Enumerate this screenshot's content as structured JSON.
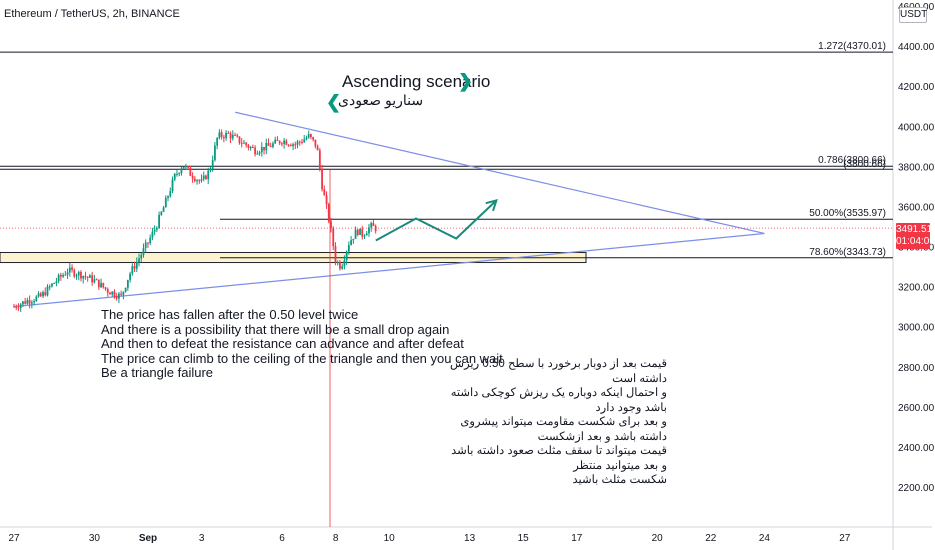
{
  "header": {
    "symbol": "Ethereum / TetherUS, 2h, BINANCE",
    "currency": "USDT",
    "last_price": "3491.51",
    "countdown": "01:04:09"
  },
  "chart_data": {
    "type": "candlestick",
    "title": "Ethereum / TetherUS, 2h, BINANCE",
    "ylim": [
      2080,
      4600
    ],
    "y_ticks": [
      4600,
      4400,
      4200,
      4000,
      3800,
      3600,
      3400,
      3200,
      3000,
      2800,
      2600,
      2400,
      2200
    ],
    "y_tick_labels": [
      "4600.00",
      "4400.00",
      "4200.00",
      "4000.00",
      "3800.00",
      "3600.00",
      "3400.00",
      "3200.00",
      "3000.00",
      "2800.00",
      "2600.00",
      "2400.00",
      "2200.00"
    ],
    "x_ticks": [
      {
        "label": "27",
        "day_index": 0
      },
      {
        "label": "30",
        "day_index": 3
      },
      {
        "label": "Sep",
        "day_index": 5
      },
      {
        "label": "3",
        "day_index": 7
      },
      {
        "label": "6",
        "day_index": 10
      },
      {
        "label": "8",
        "day_index": 12
      },
      {
        "label": "10",
        "day_index": 14
      },
      {
        "label": "13",
        "day_index": 17
      },
      {
        "label": "15",
        "day_index": 19
      },
      {
        "label": "17",
        "day_index": 21
      },
      {
        "label": "20",
        "day_index": 24
      },
      {
        "label": "22",
        "day_index": 26
      },
      {
        "label": "24",
        "day_index": 28
      },
      {
        "label": "27",
        "day_index": 31
      }
    ],
    "close_path": [
      [
        0,
        3100
      ],
      [
        0.5,
        3130
      ],
      [
        1,
        3150
      ],
      [
        1.5,
        3220
      ],
      [
        2,
        3280
      ],
      [
        2.5,
        3260
      ],
      [
        3,
        3230
      ],
      [
        3.5,
        3180
      ],
      [
        4,
        3150
      ],
      [
        4.3,
        3260
      ],
      [
        4.7,
        3350
      ],
      [
        5,
        3420
      ],
      [
        5.3,
        3500
      ],
      [
        5.6,
        3600
      ],
      [
        6,
        3750
      ],
      [
        6.3,
        3810
      ],
      [
        6.6,
        3760
      ],
      [
        7,
        3720
      ],
      [
        7.3,
        3780
      ],
      [
        7.6,
        3950
      ],
      [
        8,
        3960
      ],
      [
        8.5,
        3920
      ],
      [
        9,
        3880
      ],
      [
        9.5,
        3900
      ],
      [
        10,
        3930
      ],
      [
        10.5,
        3910
      ],
      [
        11,
        3950
      ],
      [
        11.3,
        3900
      ],
      [
        11.5,
        3700
      ],
      [
        11.8,
        3500
      ],
      [
        12,
        3330
      ],
      [
        12.2,
        3300
      ],
      [
        12.5,
        3420
      ],
      [
        12.8,
        3480
      ],
      [
        13,
        3460
      ],
      [
        13.3,
        3500
      ],
      [
        13.5,
        3491.51
      ]
    ],
    "horizontal_levels": [
      {
        "label": "1.272(4370.01)",
        "value": 4370.01
      },
      {
        "label": "0.786(3800.66)",
        "value": 3800.66
      },
      {
        "label": "50.00%(3535.97)",
        "value": 3535.97
      },
      {
        "label": "78.60%(3343.73)",
        "value": 3343.73
      }
    ],
    "support_zone": [
      3320,
      3370
    ],
    "triangle": {
      "upper_start": [
        9,
        4040
      ],
      "lower_start": [
        0,
        3100
      ],
      "apex": [
        28,
        3465
      ]
    },
    "projection": [
      [
        13.5,
        3430
      ],
      [
        15,
        3540
      ],
      [
        16.5,
        3440
      ],
      [
        18,
        3630
      ]
    ],
    "colors": {
      "up": "#089981",
      "down": "#f23645",
      "triangle": "#7b8fe6",
      "zone": "#fdf3d1",
      "zone_border": "#1e222d",
      "line": "#131722",
      "projection": "#1a8a7c"
    }
  },
  "annotations": {
    "scenario_en": "Ascending scenario",
    "scenario_fa": "سناریو صعودی",
    "note_en": [
      "The price has fallen after the 0.50 level twice",
      "And there is a possibility that there will be a small drop again",
      "And then to defeat the resistance can advance and after defeat",
      "The price can climb to the ceiling of the triangle and then you can wait",
      "Be a triangle failure"
    ],
    "note_fa": [
      "قیمت بعد از دوبار برخورد با سطح 0.50 ریزش داشته است",
      "و احتمال اینکه دوباره یک ریزش کوچکی داشته باشد وجود دارد",
      "و بعد برای شکست مقاومت میتواند پیشروی داشته باشد و بعد ازشکست",
      "قیمت میتواند تا سقف مثلث صعود داشته باشد و بعد میتوانید منتظر",
      "شکست مثلث باشید"
    ]
  }
}
